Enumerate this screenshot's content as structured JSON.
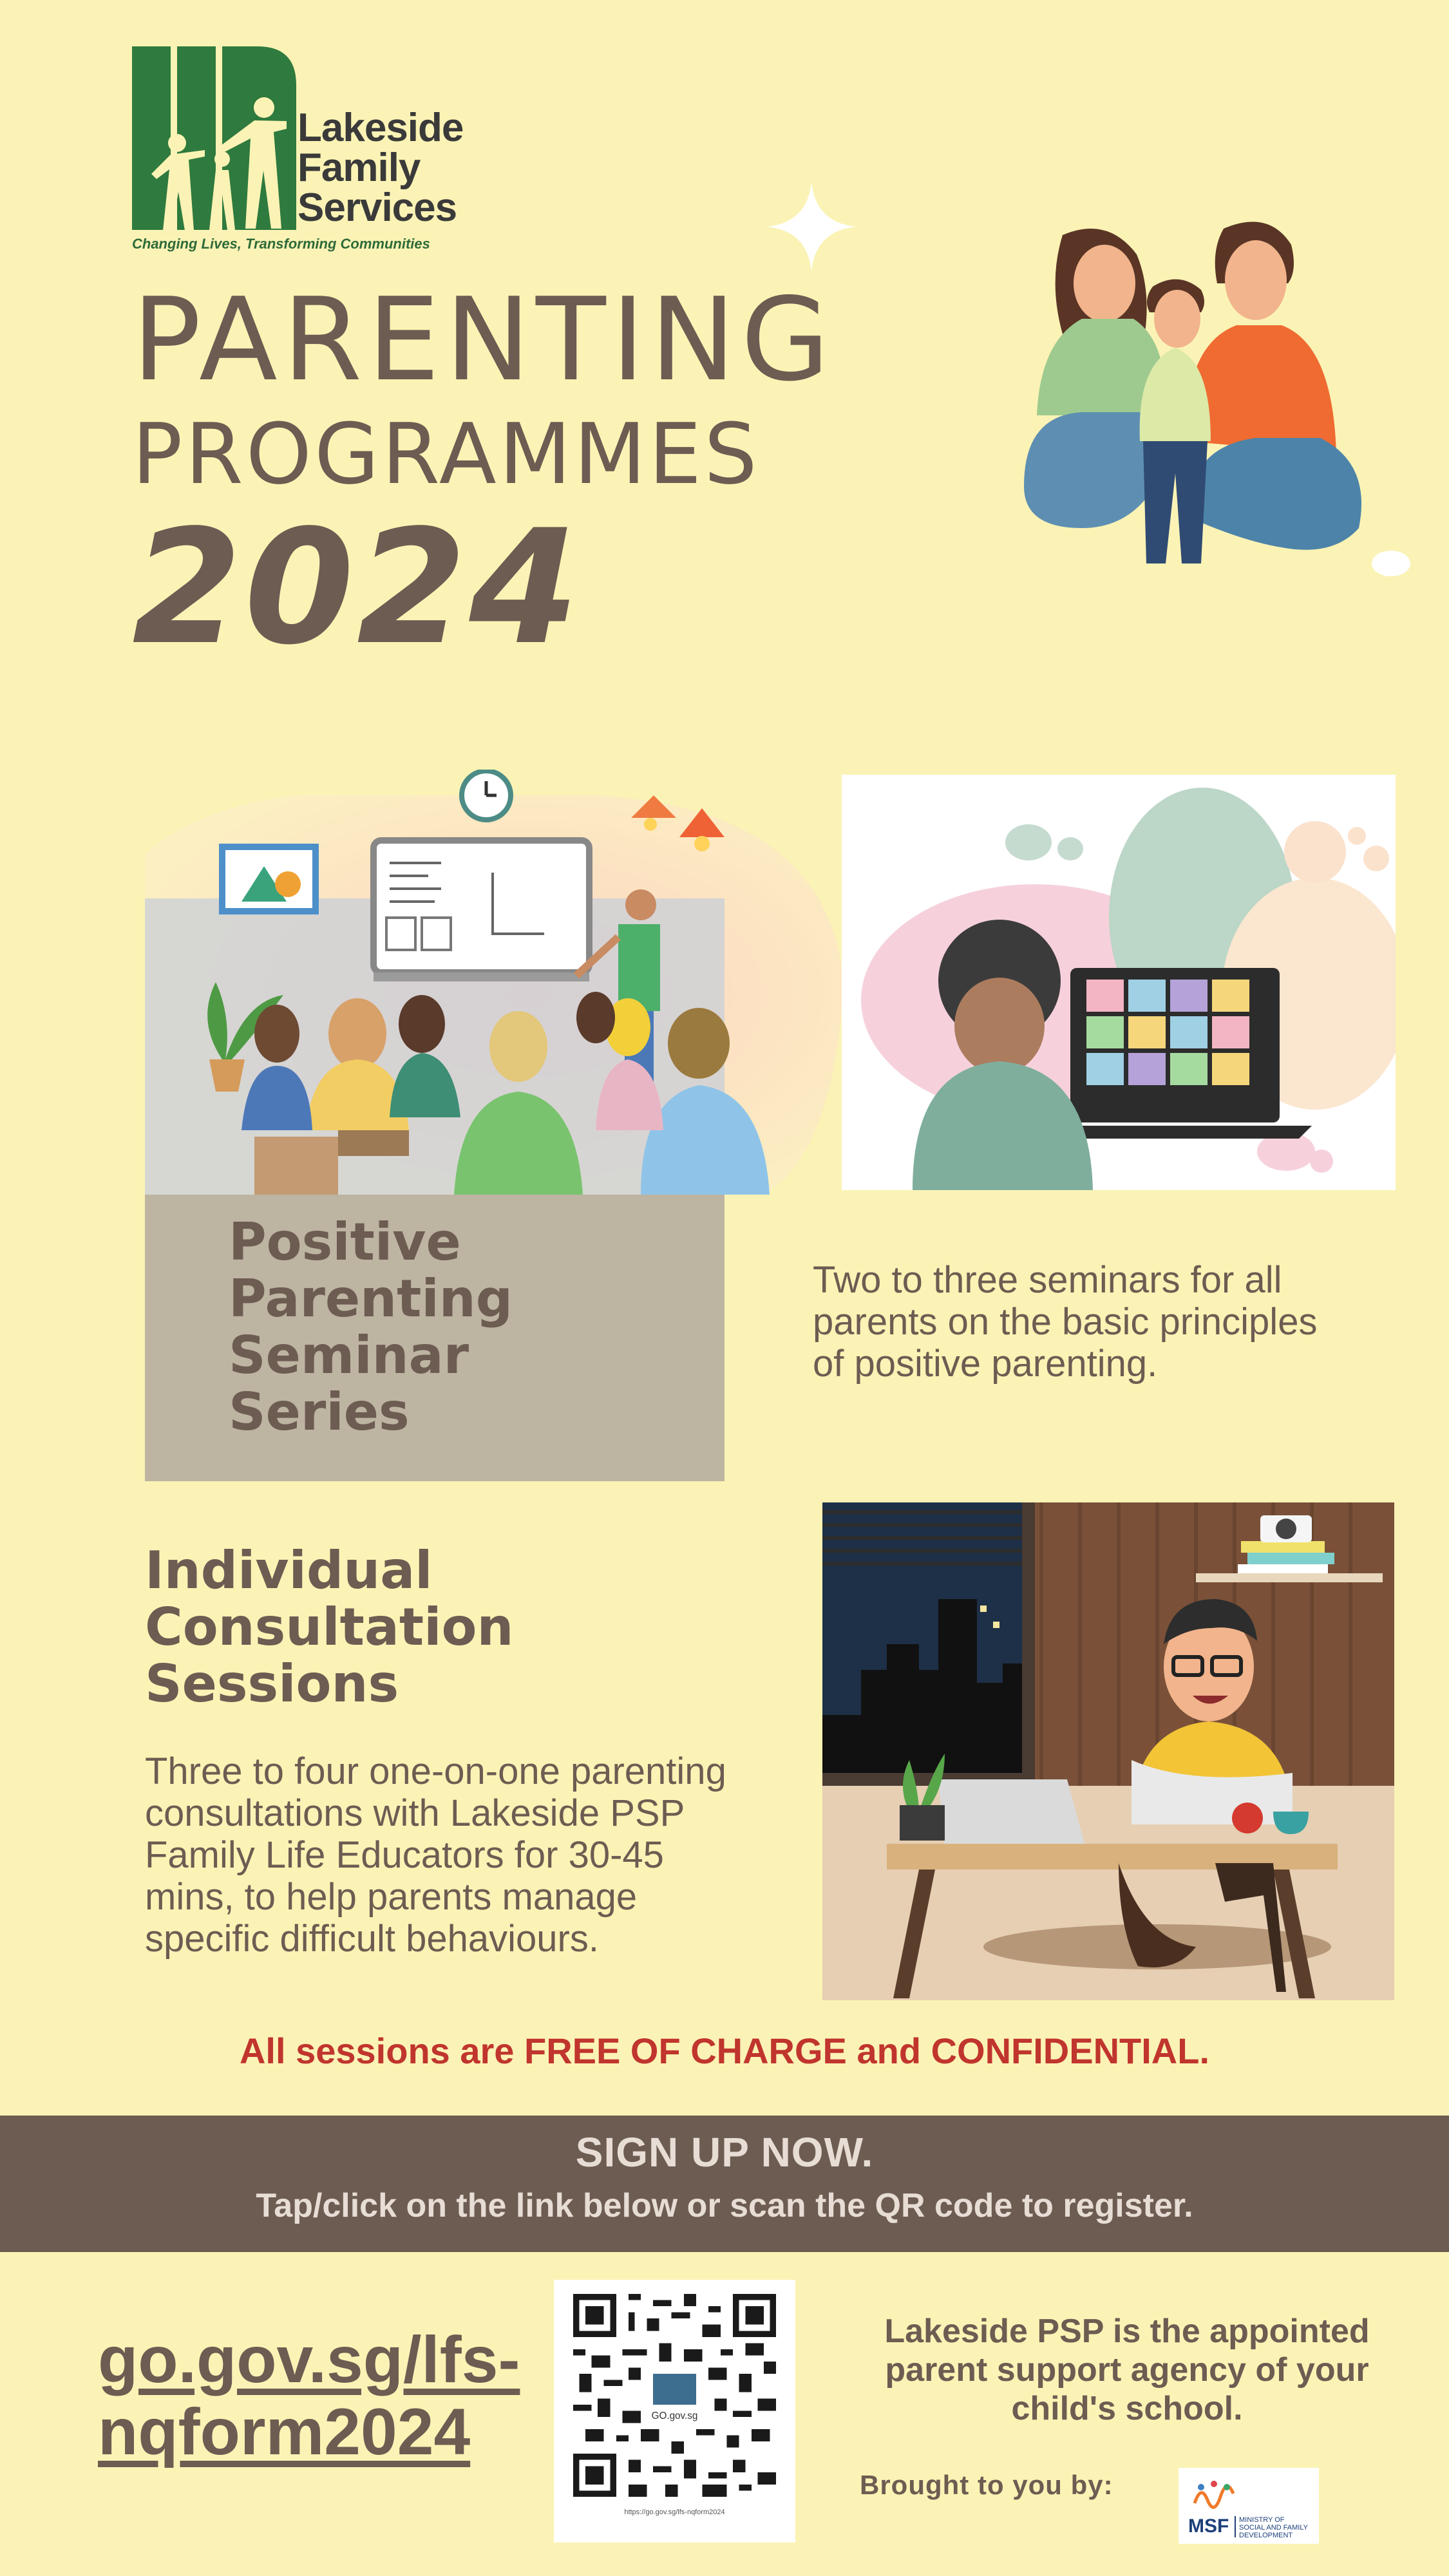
{
  "logo": {
    "name_lines": [
      "Lakeside",
      "Family",
      "Services"
    ],
    "tagline": "Changing Lives, Transforming Communities"
  },
  "title": {
    "line1": "PARENTING",
    "line2": "PROGRAMMES",
    "year": "2024"
  },
  "seminar": {
    "title_lines": [
      "Positive",
      "Parenting",
      "Seminar",
      "Series"
    ],
    "description": "Two to three seminars for all parents on the basic principles of positive parenting."
  },
  "consultation": {
    "title_lines": [
      "Individual",
      "Consultation",
      "Sessions"
    ],
    "description": "Three to four one-on-one parenting consultations with Lakeside PSP Family Life Educators for 30-45 mins, to help parents manage specific difficult behaviours."
  },
  "free_note": "All sessions are FREE OF CHARGE and CONFIDENTIAL.",
  "banner": {
    "heading": "SIGN UP NOW.",
    "subtext": "Tap/click on the link below or scan the QR code to register."
  },
  "registration": {
    "link_lines": [
      "go.gov.sg/lfs-",
      "nqform2024"
    ],
    "qr_caption": "https://go.gov.sg/lfs-nqform2024",
    "qr_center_label": "GO.gov.sg"
  },
  "agency": {
    "text": "Lakeside PSP is the appointed parent support agency of your child's school.",
    "brought_by": "Brought to you by:",
    "msf_abbrev": "MSF",
    "msf_name_lines": [
      "MINISTRY OF",
      "SOCIAL AND FAMILY",
      "DEVELOPMENT"
    ]
  },
  "colors": {
    "background": "#fbf3b5",
    "text_brown": "#6d5c52",
    "accent_red": "#c0352d",
    "logo_green": "#2f6a39",
    "banner": "#6d5c52"
  }
}
